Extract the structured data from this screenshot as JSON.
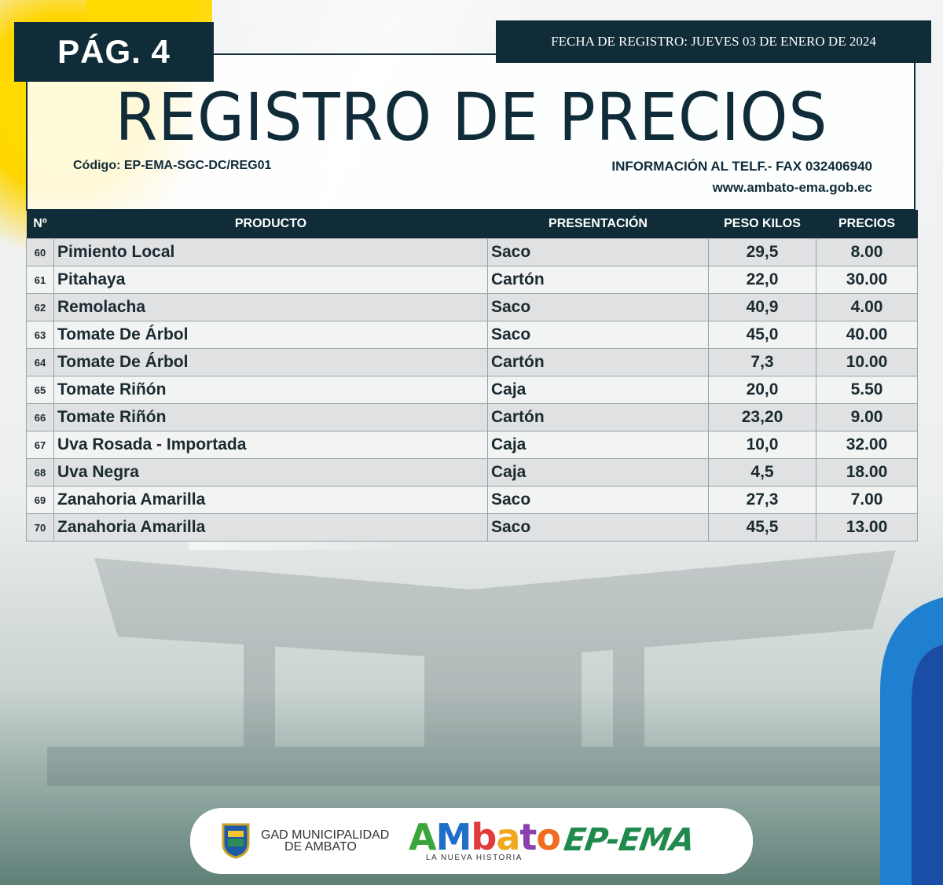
{
  "page_tag": "PÁG. 4",
  "date_label": "FECHA DE REGISTRO: JUEVES 03  DE ENERO DE 2024",
  "title": "REGISTRO DE PRECIOS",
  "code": "Código: EP-EMA-SGC-DC/REG01",
  "info": "INFORMACIÓN AL TELF.- FAX 032406940",
  "website": "www.ambato-ema.gob.ec",
  "table": {
    "headers": [
      "Nº",
      "PRODUCTO",
      "PRESENTACIÓN",
      "PESO KILOS",
      "PRECIOS"
    ],
    "rows": [
      [
        "60",
        "Pimiento Local",
        "Saco",
        "29,5",
        "8.00"
      ],
      [
        "61",
        "Pitahaya",
        "Cartón",
        "22,0",
        "30.00"
      ],
      [
        "62",
        "Remolacha",
        "Saco",
        "40,9",
        "4.00"
      ],
      [
        "63",
        "Tomate De Árbol",
        "Saco",
        "45,0",
        "40.00"
      ],
      [
        "64",
        "Tomate De Árbol",
        "Cartón",
        "7,3",
        "10.00"
      ],
      [
        "65",
        "Tomate Riñón",
        "Caja",
        "20,0",
        "5.50"
      ],
      [
        "66",
        "Tomate Riñón",
        "Cartón",
        "23,20",
        "9.00"
      ],
      [
        "67",
        "Uva Rosada - Importada",
        "Caja",
        "10,0",
        "32.00"
      ],
      [
        "68",
        "Uva Negra",
        "Caja",
        "4,5",
        "18.00"
      ],
      [
        "69",
        "Zanahoria Amarilla",
        "Saco",
        "27,3",
        "7.00"
      ],
      [
        "70",
        "Zanahoria Amarilla",
        "Saco",
        "45,5",
        "13.00"
      ]
    ]
  },
  "footer": {
    "gad_line1": "GAD MUNICIPALIDAD",
    "gad_line2": "DE AMBATO",
    "ambato": "AMbato",
    "ambato_sub": "LA NUEVA HISTORIA",
    "epema": "EP-EMA"
  },
  "colors": {
    "navy": "#0f2c38",
    "yellow": "#ffd900",
    "epema_green": "#1f8a4c"
  }
}
